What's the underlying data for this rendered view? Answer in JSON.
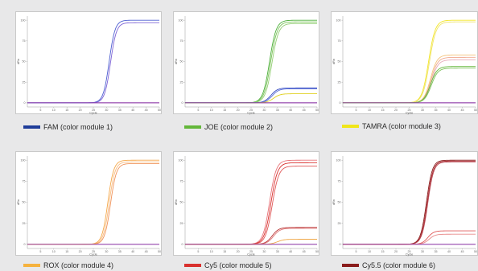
{
  "chart_data": [
    {
      "type": "line",
      "legend": {
        "label": "FAM (color module 1)",
        "color": "#1f3d99"
      },
      "xlabel": "Cycle",
      "ylabel": "dRn",
      "xlim": [
        0,
        50
      ],
      "ylim": [
        -5,
        105
      ],
      "xticks": [
        5,
        10,
        15,
        20,
        25,
        30,
        35,
        40,
        45,
        50
      ],
      "yticks": [
        0,
        25,
        50,
        75,
        100
      ],
      "curves": [
        {
          "plateau": 100,
          "ct": 31.0,
          "k": 0.9,
          "color": "#4d5fd1"
        },
        {
          "plateau": 97,
          "ct": 31.5,
          "k": 0.9,
          "color": "#7e63d6"
        },
        {
          "plateau": 0,
          "ct": 30,
          "k": 1,
          "color": "#8a3aa6"
        }
      ]
    },
    {
      "type": "line",
      "legend": {
        "label": "JOE (color module 2)",
        "color": "#63b73a"
      },
      "xlabel": "Cycle",
      "ylabel": "dRn",
      "xlim": [
        0,
        50
      ],
      "ylim": [
        -5,
        105
      ],
      "xticks": [
        5,
        10,
        15,
        20,
        25,
        30,
        35,
        40,
        45,
        50
      ],
      "yticks": [
        0,
        25,
        50,
        75,
        100
      ],
      "curves": [
        {
          "plateau": 100,
          "ct": 32.0,
          "k": 0.8,
          "color": "#4caf3a"
        },
        {
          "plateau": 98,
          "ct": 32.4,
          "k": 0.8,
          "color": "#7cc35a"
        },
        {
          "plateau": 96,
          "ct": 32.9,
          "k": 0.8,
          "color": "#94cf75"
        },
        {
          "plateau": 18,
          "ct": 32.5,
          "k": 0.8,
          "color": "#3a4fc4"
        },
        {
          "plateau": 17,
          "ct": 33.0,
          "k": 0.8,
          "color": "#5a6fd8"
        },
        {
          "plateau": 11,
          "ct": 33.5,
          "k": 0.8,
          "color": "#e0d020"
        },
        {
          "plateau": 0,
          "ct": 30,
          "k": 1,
          "color": "#8a3aa6"
        }
      ]
    },
    {
      "type": "line",
      "legend": {
        "label": "TAMRA (color module 3)",
        "color": "#f0e619"
      },
      "xlabel": "Cycle",
      "ylabel": "dRn",
      "xlim": [
        0,
        50
      ],
      "ylim": [
        -5,
        105
      ],
      "xticks": [
        5,
        10,
        15,
        20,
        25,
        30,
        35,
        40,
        45,
        50
      ],
      "yticks": [
        0,
        25,
        50,
        75,
        100
      ],
      "curves": [
        {
          "plateau": 100,
          "ct": 32.3,
          "k": 0.8,
          "color": "#f3e625"
        },
        {
          "plateau": 98,
          "ct": 32.6,
          "k": 0.8,
          "color": "#efe36a"
        },
        {
          "plateau": 58,
          "ct": 33.0,
          "k": 0.8,
          "color": "#f4c27a"
        },
        {
          "plateau": 55,
          "ct": 33.2,
          "k": 0.8,
          "color": "#f0a88e"
        },
        {
          "plateau": 52,
          "ct": 33.4,
          "k": 0.8,
          "color": "#e8a9b8"
        },
        {
          "plateau": 44,
          "ct": 33.0,
          "k": 0.8,
          "color": "#63b73a"
        },
        {
          "plateau": 42,
          "ct": 33.3,
          "k": 0.8,
          "color": "#7fc25c"
        },
        {
          "plateau": 0,
          "ct": 30,
          "k": 1,
          "color": "#8a3aa6"
        }
      ]
    },
    {
      "type": "line",
      "legend": {
        "label": "ROX (color module 4)",
        "color": "#f5b23e"
      },
      "xlabel": "Cycle",
      "ylabel": "dRn",
      "xlim": [
        0,
        50
      ],
      "ylim": [
        -5,
        105
      ],
      "xticks": [
        5,
        10,
        15,
        20,
        25,
        30,
        35,
        40,
        45,
        50
      ],
      "yticks": [
        0,
        25,
        50,
        75,
        100
      ],
      "curves": [
        {
          "plateau": 100,
          "ct": 30.5,
          "k": 0.9,
          "color": "#f5a84a"
        },
        {
          "plateau": 98,
          "ct": 31.0,
          "k": 0.9,
          "color": "#f7bd82"
        },
        {
          "plateau": 96,
          "ct": 31.5,
          "k": 0.9,
          "color": "#f0935a"
        },
        {
          "plateau": 0,
          "ct": 30,
          "k": 1,
          "color": "#8a3aa6"
        }
      ]
    },
    {
      "type": "line",
      "legend": {
        "label": "Cy5 (color module 5)",
        "color": "#d9312e"
      },
      "xlabel": "Cycle",
      "ylabel": "dRn",
      "xlim": [
        0,
        50
      ],
      "ylim": [
        -5,
        105
      ],
      "xticks": [
        5,
        10,
        15,
        20,
        25,
        30,
        35,
        40,
        45,
        50
      ],
      "yticks": [
        0,
        25,
        50,
        75,
        100
      ],
      "curves": [
        {
          "plateau": 100,
          "ct": 32.0,
          "k": 0.8,
          "color": "#e8747a"
        },
        {
          "plateau": 97,
          "ct": 32.5,
          "k": 0.8,
          "color": "#d9312e"
        },
        {
          "plateau": 93,
          "ct": 33.0,
          "k": 0.8,
          "color": "#e05858"
        },
        {
          "plateau": 20,
          "ct": 33.0,
          "k": 0.8,
          "color": "#b83434"
        },
        {
          "plateau": 19,
          "ct": 33.5,
          "k": 0.8,
          "color": "#e07a7a"
        },
        {
          "plateau": 6,
          "ct": 35.0,
          "k": 0.8,
          "color": "#f0a848"
        },
        {
          "plateau": 0,
          "ct": 30,
          "k": 1,
          "color": "#8a3aa6"
        }
      ]
    },
    {
      "type": "line",
      "legend": {
        "label": "Cy5.5 (color module 6)",
        "color": "#8a1c1c"
      },
      "xlabel": "Cycle",
      "ylabel": "dRn",
      "xlim": [
        0,
        50
      ],
      "ylim": [
        -5,
        105
      ],
      "xticks": [
        5,
        10,
        15,
        20,
        25,
        30,
        35,
        40,
        45,
        50
      ],
      "yticks": [
        0,
        25,
        50,
        75,
        100
      ],
      "curves": [
        {
          "plateau": 100,
          "ct": 31.5,
          "k": 0.9,
          "color": "#8a1c1c"
        },
        {
          "plateau": 99,
          "ct": 31.8,
          "k": 0.9,
          "color": "#a8232a"
        },
        {
          "plateau": 98,
          "ct": 32.0,
          "k": 0.9,
          "color": "#b84a55"
        },
        {
          "plateau": 16,
          "ct": 32.0,
          "k": 0.9,
          "color": "#e05a5a"
        },
        {
          "plateau": 12,
          "ct": 32.5,
          "k": 0.9,
          "color": "#e88a8a"
        },
        {
          "plateau": 0,
          "ct": 30,
          "k": 1,
          "color": "#8a3aa6"
        }
      ]
    }
  ]
}
